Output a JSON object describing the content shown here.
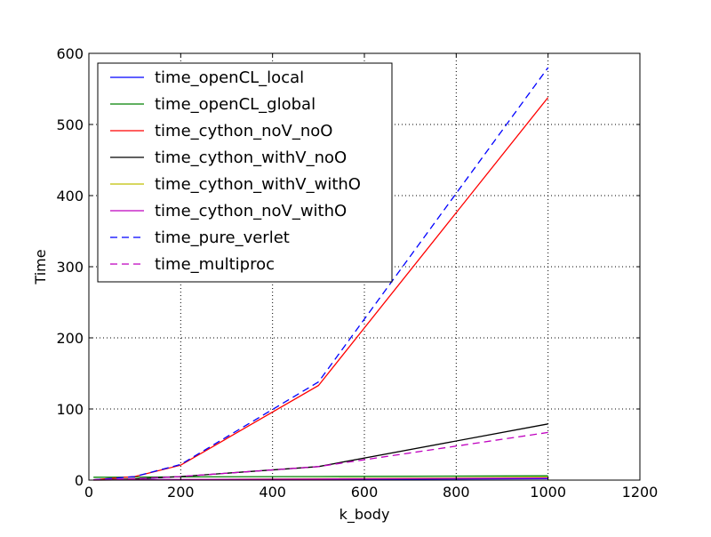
{
  "chart_data": {
    "type": "line",
    "title": "",
    "xlabel": "k_body",
    "ylabel": "Time",
    "xlim": [
      0,
      1200
    ],
    "ylim": [
      0,
      600
    ],
    "xticks": [
      0,
      200,
      400,
      600,
      800,
      1000,
      1200
    ],
    "yticks": [
      0,
      100,
      200,
      300,
      400,
      500,
      600
    ],
    "grid": true,
    "legend_position": "upper-left",
    "x": [
      10,
      100,
      200,
      500,
      1000
    ],
    "series": [
      {
        "name": "time_openCL_local",
        "values": [
          0.5,
          0.6,
          0.8,
          1.0,
          2.0
        ],
        "color": "#0000ff",
        "dash": "solid"
      },
      {
        "name": "time_openCL_global",
        "values": [
          4.0,
          4.2,
          4.5,
          5.0,
          6.0
        ],
        "color": "#008000",
        "dash": "solid"
      },
      {
        "name": "time_cython_noV_noO",
        "values": [
          0.5,
          5,
          21,
          133,
          538
        ],
        "color": "#ff0000",
        "dash": "solid"
      },
      {
        "name": "time_cython_withV_noO",
        "values": [
          0.3,
          1.5,
          5,
          19,
          79
        ],
        "color": "#000000",
        "dash": "solid"
      },
      {
        "name": "time_cython_withV_withO",
        "values": [
          0.1,
          0.3,
          0.8,
          2.0,
          4.0
        ],
        "color": "#bfbf00",
        "dash": "solid"
      },
      {
        "name": "time_cython_noV_withO",
        "values": [
          0.1,
          0.3,
          0.8,
          1.5,
          3.0
        ],
        "color": "#bf00bf",
        "dash": "solid"
      },
      {
        "name": "time_pure_verlet",
        "values": [
          0.5,
          5,
          22,
          138,
          580
        ],
        "color": "#0000ff",
        "dash": "dashed"
      },
      {
        "name": "time_multiproc",
        "values": [
          0.5,
          2,
          5,
          19,
          67
        ],
        "color": "#bf00bf",
        "dash": "dashed"
      }
    ]
  }
}
